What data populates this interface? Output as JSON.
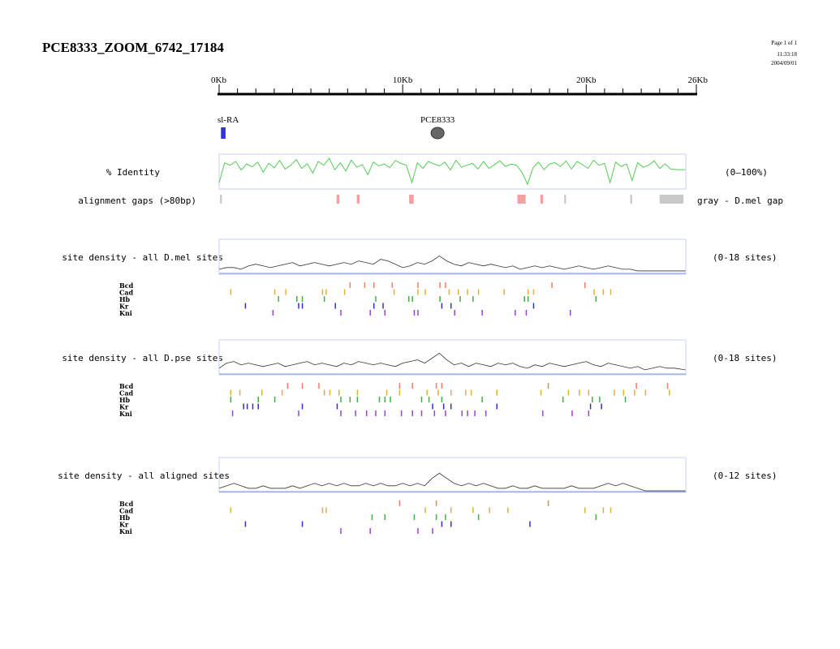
{
  "header": {
    "title": "PCE8333_ZOOM_6742_17184",
    "page": "Page 1 of 1",
    "time": "11:33:18",
    "date": "2004/09/01"
  },
  "scale": {
    "min_kb": 0,
    "max_kb": 26,
    "major_labels": [
      "0Kb",
      "10Kb",
      "20Kb",
      "26Kb"
    ],
    "major_values": [
      0,
      10,
      20,
      26
    ],
    "minor_tick_count": 26
  },
  "features": {
    "gene": {
      "label": "sl-RA",
      "start_kb": 0.1,
      "end_kb": 0.35,
      "color": "#3333dd"
    },
    "enhancer": {
      "label": "PCE8333",
      "pos_kb": 11.9,
      "color": "#666666"
    }
  },
  "identity_track": {
    "label": "% Identity",
    "range_label": "(0–100%)",
    "color": "#55cc55"
  },
  "gaps_track": {
    "label": "alignment gaps (>80bp)",
    "legend": "gray - D.mel gap",
    "gaps": [
      {
        "start_kb": 0.05,
        "end_kb": 0.15,
        "color": "#c8c8c8"
      },
      {
        "start_kb": 6.4,
        "end_kb": 6.55,
        "color": "#f4a0a0"
      },
      {
        "start_kb": 7.5,
        "end_kb": 7.65,
        "color": "#f4a0a0"
      },
      {
        "start_kb": 10.35,
        "end_kb": 10.6,
        "color": "#f4a0a0"
      },
      {
        "start_kb": 16.25,
        "end_kb": 16.7,
        "color": "#f4a0a0"
      },
      {
        "start_kb": 17.5,
        "end_kb": 17.65,
        "color": "#f4a0a0"
      },
      {
        "start_kb": 18.8,
        "end_kb": 18.9,
        "color": "#c8c8c8"
      },
      {
        "start_kb": 22.4,
        "end_kb": 22.5,
        "color": "#c8c8c8"
      },
      {
        "start_kb": 24.0,
        "end_kb": 25.3,
        "color": "#c8c8c8"
      }
    ]
  },
  "tf_colors": {
    "Bcd": "#f08060",
    "Cad": "#e0b030",
    "Hb": "#40b040",
    "Kr": "#3030d0",
    "Kni": "#a040d0"
  },
  "chart_data": [
    {
      "type": "line",
      "title": "% Identity",
      "range": "(0–100%)",
      "ylim": [
        0,
        100
      ],
      "x": [
        0,
        0.3,
        0.6,
        0.9,
        1.2,
        1.5,
        1.8,
        2.1,
        2.4,
        2.7,
        3.0,
        3.3,
        3.6,
        3.9,
        4.2,
        4.5,
        4.8,
        5.1,
        5.4,
        5.7,
        6.0,
        6.3,
        6.6,
        6.9,
        7.2,
        7.5,
        7.8,
        8.1,
        8.4,
        8.7,
        9.0,
        9.3,
        9.6,
        9.9,
        10.2,
        10.5,
        10.8,
        11.1,
        11.4,
        11.7,
        12.0,
        12.3,
        12.6,
        12.9,
        13.2,
        13.5,
        13.8,
        14.1,
        14.4,
        14.7,
        15.0,
        15.3,
        15.6,
        15.9,
        16.2,
        16.5,
        16.8,
        17.1,
        17.4,
        17.7,
        18.0,
        18.3,
        18.6,
        18.9,
        19.2,
        19.5,
        19.8,
        20.1,
        20.4,
        20.7,
        21.0,
        21.3,
        21.6,
        21.9,
        22.2,
        22.5,
        22.8,
        23.1,
        23.4,
        23.7,
        24.0,
        24.3,
        24.6,
        25.0,
        25.4
      ],
      "y": [
        15,
        78,
        70,
        82,
        55,
        74,
        65,
        80,
        48,
        76,
        62,
        85,
        58,
        70,
        88,
        60,
        75,
        45,
        82,
        70,
        92,
        56,
        78,
        52,
        86,
        64,
        72,
        40,
        80,
        68,
        74,
        62,
        85,
        76,
        70,
        15,
        78,
        60,
        82,
        74,
        68,
        80,
        55,
        86,
        64,
        70,
        76,
        58,
        82,
        60,
        72,
        84,
        66,
        74,
        70,
        48,
        10,
        62,
        80,
        56,
        74,
        78,
        66,
        84,
        58,
        82,
        72,
        60,
        86,
        70,
        76,
        15,
        80,
        66,
        74,
        22,
        78,
        64,
        70,
        84,
        60,
        74,
        58,
        56,
        56
      ]
    },
    {
      "type": "line",
      "title": "site density - all D.mel sites",
      "range": "(0-18 sites)",
      "ylim": [
        0,
        18
      ],
      "x": [
        0,
        0.4,
        0.8,
        1.2,
        1.6,
        2.0,
        2.4,
        2.8,
        3.2,
        3.6,
        4.0,
        4.4,
        4.8,
        5.2,
        5.6,
        6.0,
        6.4,
        6.8,
        7.2,
        7.6,
        8.0,
        8.4,
        8.8,
        9.2,
        9.6,
        10.0,
        10.4,
        10.8,
        11.2,
        11.6,
        12.0,
        12.4,
        12.8,
        13.2,
        13.6,
        14.0,
        14.4,
        14.8,
        15.2,
        15.6,
        16.0,
        16.4,
        16.8,
        17.2,
        17.6,
        18.0,
        18.4,
        18.8,
        19.2,
        19.6,
        20.0,
        20.4,
        20.8,
        21.2,
        21.6,
        22.0,
        22.4,
        22.8,
        23.2,
        23.6,
        24.0,
        24.4,
        24.8,
        25.4
      ],
      "y": [
        2,
        3,
        3,
        2,
        4,
        5,
        4,
        3,
        4,
        5,
        6,
        4,
        5,
        6,
        5,
        4,
        5,
        6,
        5,
        7,
        6,
        5,
        8,
        7,
        5,
        3,
        4,
        6,
        5,
        7,
        10,
        7,
        5,
        4,
        6,
        5,
        4,
        5,
        4,
        3,
        4,
        2,
        3,
        4,
        3,
        4,
        3,
        2,
        3,
        4,
        3,
        2,
        3,
        4,
        3,
        2,
        2,
        1,
        1,
        1,
        1,
        1,
        1,
        1
      ]
    },
    {
      "type": "line",
      "title": "site density - all D.pse sites",
      "range": "(0-18 sites)",
      "ylim": [
        0,
        18
      ],
      "x": [
        0,
        0.4,
        0.8,
        1.2,
        1.6,
        2.0,
        2.4,
        2.8,
        3.2,
        3.6,
        4.0,
        4.4,
        4.8,
        5.2,
        5.6,
        6.0,
        6.4,
        6.8,
        7.2,
        7.6,
        8.0,
        8.4,
        8.8,
        9.2,
        9.6,
        10.0,
        10.4,
        10.8,
        11.2,
        11.6,
        12.0,
        12.4,
        12.8,
        13.2,
        13.6,
        14.0,
        14.4,
        14.8,
        15.2,
        15.6,
        16.0,
        16.4,
        16.8,
        17.2,
        17.6,
        18.0,
        18.4,
        18.8,
        19.2,
        19.6,
        20.0,
        20.4,
        20.8,
        21.2,
        21.6,
        22.0,
        22.4,
        22.8,
        23.2,
        23.6,
        24.0,
        24.4,
        24.8,
        25.4
      ],
      "y": [
        3,
        6,
        7,
        5,
        6,
        5,
        4,
        5,
        6,
        4,
        5,
        6,
        7,
        5,
        6,
        5,
        4,
        6,
        5,
        7,
        6,
        5,
        6,
        5,
        4,
        6,
        7,
        8,
        6,
        9,
        12,
        8,
        5,
        6,
        4,
        6,
        5,
        4,
        6,
        5,
        6,
        4,
        3,
        5,
        4,
        6,
        5,
        4,
        5,
        6,
        7,
        5,
        4,
        6,
        5,
        4,
        3,
        4,
        2,
        3,
        4,
        3,
        3,
        2
      ]
    },
    {
      "type": "line",
      "title": "site density - all aligned sites",
      "range": "(0-12 sites)",
      "ylim": [
        0,
        12
      ],
      "x": [
        0,
        0.4,
        0.8,
        1.2,
        1.6,
        2.0,
        2.4,
        2.8,
        3.2,
        3.6,
        4.0,
        4.4,
        4.8,
        5.2,
        5.6,
        6.0,
        6.4,
        6.8,
        7.2,
        7.6,
        8.0,
        8.4,
        8.8,
        9.2,
        9.6,
        10.0,
        10.4,
        10.8,
        11.2,
        11.6,
        12.0,
        12.4,
        12.8,
        13.2,
        13.6,
        14.0,
        14.4,
        14.8,
        15.2,
        15.6,
        16.0,
        16.4,
        16.8,
        17.2,
        17.6,
        18.0,
        18.4,
        18.8,
        19.2,
        19.6,
        20.0,
        20.4,
        20.8,
        21.2,
        21.6,
        22.0,
        22.4,
        22.8,
        23.2,
        23.6,
        24.0,
        24.4,
        24.8,
        25.4
      ],
      "y": [
        1,
        2,
        3,
        2,
        1,
        1,
        2,
        1,
        1,
        1,
        2,
        1,
        2,
        3,
        2,
        3,
        2,
        3,
        2,
        2,
        3,
        2,
        3,
        2,
        2,
        3,
        2,
        3,
        2,
        5,
        7,
        5,
        3,
        2,
        3,
        2,
        3,
        2,
        1,
        1,
        2,
        1,
        1,
        2,
        1,
        1,
        1,
        1,
        2,
        1,
        1,
        1,
        2,
        3,
        2,
        3,
        2,
        1,
        0,
        0,
        0,
        0,
        0,
        0
      ]
    }
  ],
  "sections": [
    {
      "sites": {
        "Bcd": [
          7.1,
          7.9,
          8.4,
          9.4,
          10.8,
          12.0,
          12.3,
          18.1,
          19.9
        ],
        "Cad": [
          0.6,
          3.0,
          3.6,
          5.6,
          5.8,
          6.8,
          9.5,
          10.8,
          11.2,
          12.5,
          13.0,
          13.5,
          14.1,
          15.5,
          16.8,
          17.1,
          20.4,
          20.9,
          21.3
        ],
        "Hb": [
          3.2,
          4.2,
          4.5,
          5.7,
          8.5,
          10.3,
          10.5,
          12.0,
          13.1,
          13.8,
          16.6,
          16.8,
          20.5
        ],
        "Kr": [
          1.4,
          4.3,
          4.5,
          6.3,
          8.4,
          8.9,
          12.1,
          12.6,
          17.1
        ],
        "Kni": [
          2.9,
          6.6,
          8.2,
          9.0,
          10.6,
          10.8,
          12.8,
          14.3,
          16.1,
          16.7,
          19.1
        ]
      }
    },
    {
      "sites": {
        "Bcd": [
          3.7,
          4.5,
          5.4,
          9.8,
          10.5,
          11.8,
          12.1,
          17.9,
          22.7,
          24.4
        ],
        "Cad": [
          0.6,
          1.1,
          2.3,
          3.4,
          5.7,
          6.0,
          6.5,
          7.5,
          9.1,
          9.8,
          11.3,
          11.9,
          12.6,
          13.4,
          13.7,
          15.1,
          17.5,
          19.0,
          19.6,
          20.1,
          21.5,
          22.0,
          22.6,
          23.2,
          24.5
        ],
        "Hb": [
          0.6,
          2.1,
          3.0,
          6.6,
          7.1,
          7.5,
          8.7,
          9.0,
          9.3,
          11.0,
          11.4,
          12.1,
          14.3,
          18.7,
          20.3,
          20.7,
          22.1
        ],
        "Kr": [
          1.3,
          1.5,
          1.8,
          2.1,
          4.5,
          6.4,
          11.6,
          12.2,
          12.6,
          15.1,
          20.2,
          20.8
        ],
        "Kni": [
          0.7,
          4.3,
          6.6,
          7.4,
          8.0,
          8.5,
          9.0,
          9.9,
          10.5,
          11.0,
          11.7,
          12.3,
          13.2,
          13.5,
          13.9,
          14.5,
          17.6,
          19.2,
          20.1
        ]
      }
    },
    {
      "sites": {
        "Bcd": [
          9.8,
          11.8,
          17.9
        ],
        "Cad": [
          0.6,
          5.6,
          5.8,
          11.2,
          12.6,
          13.8,
          14.7,
          15.7,
          19.9,
          20.9,
          21.3
        ],
        "Hb": [
          8.3,
          9.0,
          10.6,
          11.8,
          12.3,
          14.1,
          20.5
        ],
        "Kr": [
          1.4,
          4.5,
          12.1,
          12.6,
          16.9
        ],
        "Kni": [
          6.6,
          8.2,
          10.8,
          11.6
        ]
      }
    }
  ]
}
